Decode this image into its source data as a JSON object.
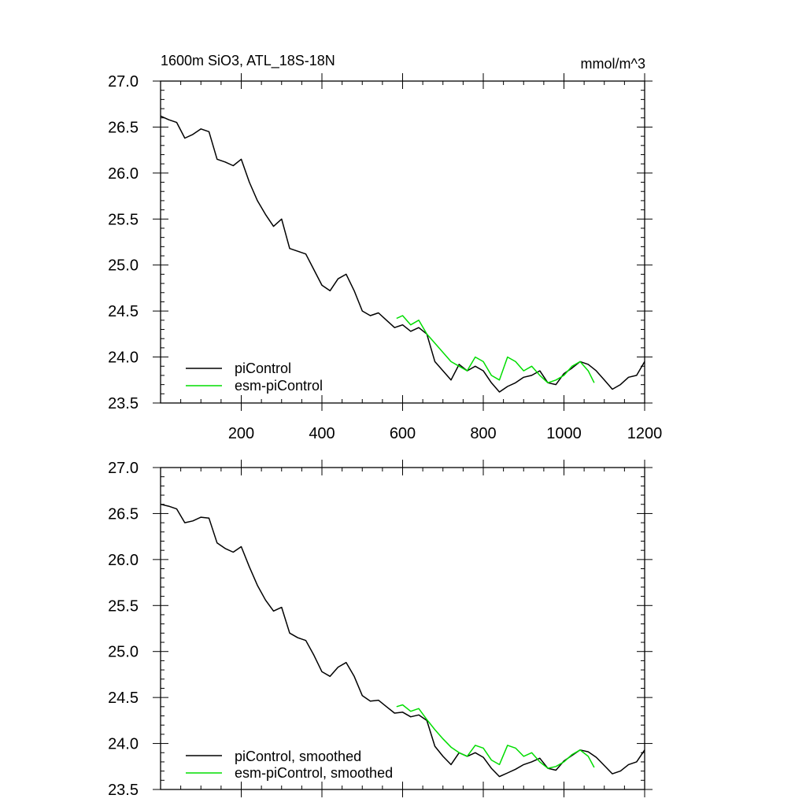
{
  "chart_data": [
    {
      "type": "line",
      "title": "1600m SiO3, ATL_18S-18N",
      "units_label": "mmol/m^3",
      "xlim": [
        0,
        1200
      ],
      "ylim": [
        23.5,
        27.0
      ],
      "x_ticks": [
        200,
        400,
        600,
        800,
        1000,
        1200
      ],
      "y_ticks": [
        "23.5",
        "24.0",
        "24.5",
        "25.0",
        "25.5",
        "26.0",
        "26.5",
        "27.0"
      ],
      "legend_position": "bottom-left",
      "series": [
        {
          "name": "piControl",
          "color": "#000000",
          "x": [
            0,
            20,
            40,
            60,
            80,
            100,
            120,
            140,
            160,
            180,
            200,
            220,
            240,
            260,
            280,
            300,
            320,
            340,
            360,
            380,
            400,
            420,
            440,
            460,
            480,
            500,
            520,
            540,
            560,
            580,
            600,
            620,
            640,
            660,
            680,
            700,
            720,
            740,
            760,
            780,
            800,
            820,
            840,
            860,
            880,
            900,
            920,
            940,
            960,
            980,
            1000,
            1020,
            1040,
            1060,
            1080,
            1100,
            1120,
            1140,
            1160,
            1180,
            1200
          ],
          "y": [
            26.62,
            26.58,
            26.55,
            26.38,
            26.42,
            26.48,
            26.45,
            26.15,
            26.12,
            26.08,
            26.15,
            25.9,
            25.7,
            25.55,
            25.42,
            25.5,
            25.18,
            25.15,
            25.12,
            24.95,
            24.78,
            24.72,
            24.85,
            24.9,
            24.72,
            24.5,
            24.45,
            24.48,
            24.4,
            24.32,
            24.35,
            24.28,
            24.32,
            24.25,
            23.95,
            23.85,
            23.75,
            23.92,
            23.85,
            23.9,
            23.85,
            23.72,
            23.62,
            23.68,
            23.72,
            23.78,
            23.8,
            23.85,
            23.72,
            23.7,
            23.82,
            23.88,
            23.95,
            23.92,
            23.85,
            23.75,
            23.65,
            23.7,
            23.78,
            23.8,
            23.95
          ]
        },
        {
          "name": "esm-piControl",
          "color": "#00dd00",
          "x": [
            585,
            600,
            620,
            640,
            660,
            680,
            700,
            720,
            740,
            760,
            780,
            800,
            820,
            840,
            860,
            880,
            900,
            920,
            940,
            960,
            980,
            1000,
            1020,
            1040,
            1060,
            1075
          ],
          "y": [
            24.42,
            24.45,
            24.35,
            24.4,
            24.25,
            24.15,
            24.05,
            23.95,
            23.9,
            23.85,
            24.0,
            23.95,
            23.8,
            23.75,
            24.0,
            23.95,
            23.85,
            23.9,
            23.8,
            23.72,
            23.75,
            23.8,
            23.9,
            23.95,
            23.85,
            23.72
          ]
        }
      ]
    },
    {
      "type": "line",
      "xlim": [
        0,
        1200
      ],
      "ylim": [
        23.5,
        27.0
      ],
      "y_ticks": [
        "23.5",
        "24.0",
        "24.5",
        "25.0",
        "25.5",
        "26.0",
        "26.5",
        "27.0"
      ],
      "legend_position": "bottom-left",
      "series": [
        {
          "name": "piControl, smoothed",
          "color": "#000000",
          "x": [
            0,
            20,
            40,
            60,
            80,
            100,
            120,
            140,
            160,
            180,
            200,
            220,
            240,
            260,
            280,
            300,
            320,
            340,
            360,
            380,
            400,
            420,
            440,
            460,
            480,
            500,
            520,
            540,
            560,
            580,
            600,
            620,
            640,
            660,
            680,
            700,
            720,
            740,
            760,
            780,
            800,
            820,
            840,
            860,
            880,
            900,
            920,
            940,
            960,
            980,
            1000,
            1020,
            1040,
            1060,
            1080,
            1100,
            1120,
            1140,
            1160,
            1180,
            1200
          ],
          "y": [
            26.6,
            26.58,
            26.55,
            26.4,
            26.42,
            26.46,
            26.45,
            26.18,
            26.12,
            26.08,
            26.14,
            25.92,
            25.72,
            25.56,
            25.44,
            25.48,
            25.2,
            25.15,
            25.12,
            24.96,
            24.78,
            24.73,
            24.83,
            24.88,
            24.73,
            24.52,
            24.46,
            24.47,
            24.4,
            24.33,
            24.34,
            24.29,
            24.31,
            24.25,
            23.97,
            23.86,
            23.77,
            23.9,
            23.86,
            23.9,
            23.85,
            23.73,
            23.64,
            23.68,
            23.72,
            23.77,
            23.8,
            23.84,
            23.73,
            23.71,
            23.81,
            23.87,
            23.93,
            23.91,
            23.85,
            23.76,
            23.67,
            23.7,
            23.77,
            23.8,
            23.93
          ]
        },
        {
          "name": "esm-piControl, smoothed",
          "color": "#00dd00",
          "x": [
            585,
            600,
            620,
            640,
            660,
            680,
            700,
            720,
            740,
            760,
            780,
            800,
            820,
            840,
            860,
            880,
            900,
            920,
            940,
            960,
            980,
            1000,
            1020,
            1040,
            1060,
            1075
          ],
          "y": [
            24.4,
            24.42,
            24.35,
            24.38,
            24.26,
            24.15,
            24.05,
            23.96,
            23.9,
            23.86,
            23.98,
            23.95,
            23.82,
            23.77,
            23.98,
            23.95,
            23.86,
            23.9,
            23.8,
            23.73,
            23.75,
            23.8,
            23.88,
            23.93,
            23.86,
            23.74
          ]
        }
      ]
    }
  ]
}
